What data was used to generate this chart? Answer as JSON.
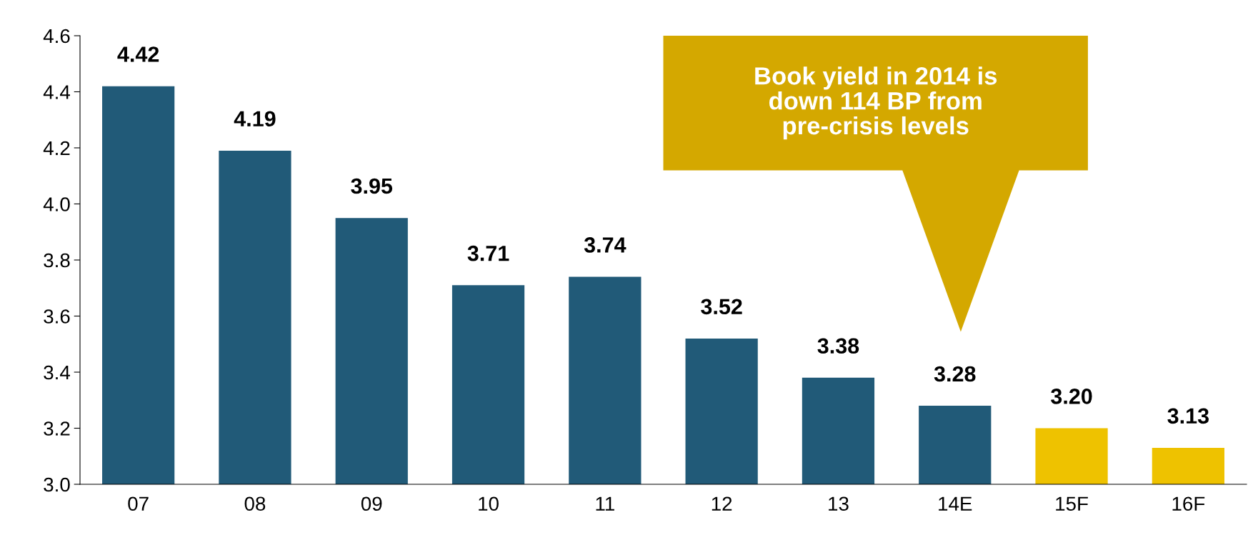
{
  "chart_data": {
    "type": "bar",
    "categories": [
      "07",
      "08",
      "09",
      "10",
      "11",
      "12",
      "13",
      "14E",
      "15F",
      "16F"
    ],
    "values": [
      4.42,
      4.19,
      3.95,
      3.71,
      3.74,
      3.52,
      3.38,
      3.28,
      3.2,
      3.13
    ],
    "value_labels": [
      "4.42",
      "4.19",
      "3.95",
      "3.71",
      "3.74",
      "3.52",
      "3.38",
      "3.28",
      "3.20",
      "3.13"
    ],
    "colors": [
      "#215a78",
      "#215a78",
      "#215a78",
      "#215a78",
      "#215a78",
      "#215a78",
      "#215a78",
      "#215a78",
      "#eec200",
      "#eec200"
    ],
    "ylim": [
      3.0,
      4.6
    ],
    "yticks": [
      {
        "value": 3.0,
        "label": "3.0"
      },
      {
        "value": 3.2,
        "label": "3.2"
      },
      {
        "value": 3.4,
        "label": "3.4"
      },
      {
        "value": 3.6,
        "label": "3.6"
      },
      {
        "value": 3.8,
        "label": "3.8"
      },
      {
        "value": 4.0,
        "label": "4.0"
      },
      {
        "value": 4.2,
        "label": "4.2"
      },
      {
        "value": 4.4,
        "label": "4.4"
      },
      {
        "value": 4.6,
        "label": "4.6"
      }
    ],
    "grid": false,
    "legend": false,
    "annotations": [
      "Book yield in 2014 is\ndown 114 BP from\npre-crisis levels"
    ]
  }
}
